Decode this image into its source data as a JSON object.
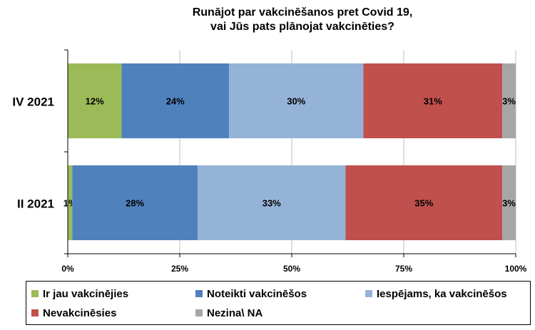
{
  "chart_data": {
    "type": "bar",
    "orientation": "horizontal",
    "stacked": true,
    "title_line1": "Runājot par vakcinēšanos pret Covid 19,",
    "title_line2": "vai Jūs pats plānojat vakcinēties?",
    "categories": [
      "IV 2021",
      "II 2021"
    ],
    "xlim": [
      0,
      100
    ],
    "x_ticks": [
      "0%",
      "25%",
      "50%",
      "75%",
      "100%"
    ],
    "legend_position": "bottom",
    "grid": true,
    "series": [
      {
        "name": "Ir jau vakcinējies",
        "color": "#9bbb59",
        "values": [
          12,
          1
        ],
        "labels": [
          "12%",
          "1%"
        ]
      },
      {
        "name": "Noteikti vakcinēšos",
        "color": "#4f81bd",
        "values": [
          24,
          28
        ],
        "labels": [
          "24%",
          "28%"
        ]
      },
      {
        "name": "Iespējams, ka vakcinēšos",
        "color": "#95b3d7",
        "values": [
          30,
          33
        ],
        "labels": [
          "30%",
          "33%"
        ]
      },
      {
        "name": "Nevakcinēsies",
        "color": "#c0504d",
        "values": [
          31,
          35
        ],
        "labels": [
          "31%",
          "35%"
        ]
      },
      {
        "name": "Nezina\\ NA",
        "color": "#a6a6a6",
        "values": [
          3,
          3
        ],
        "labels": [
          "3%",
          "3%"
        ]
      }
    ]
  }
}
